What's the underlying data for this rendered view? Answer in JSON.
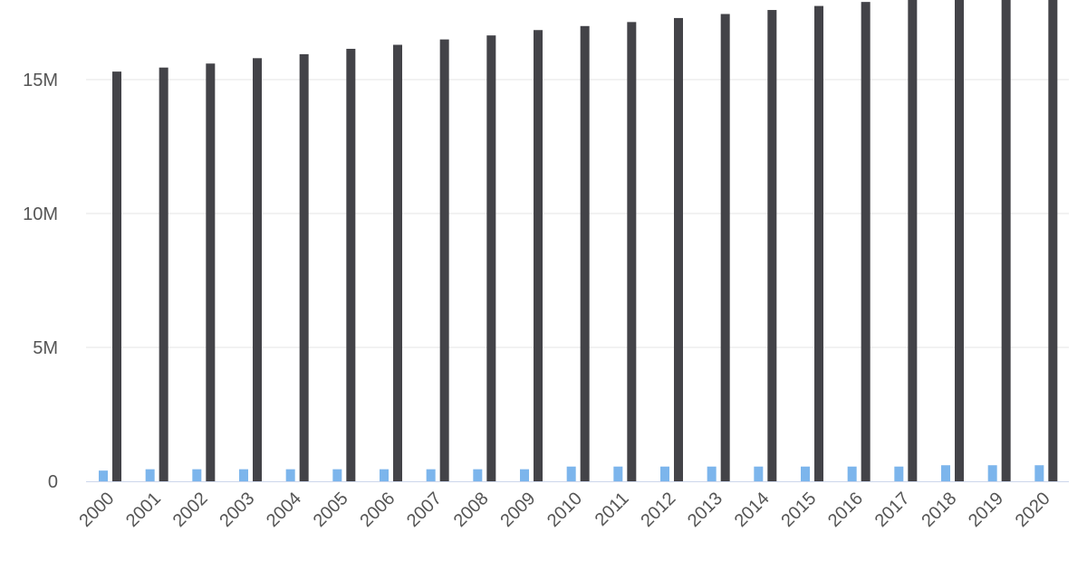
{
  "chart_data": {
    "type": "bar",
    "title": "",
    "xlabel": "",
    "ylabel": "",
    "categories": [
      "2000",
      "2001",
      "2002",
      "2003",
      "2004",
      "2005",
      "2006",
      "2007",
      "2008",
      "2009",
      "2010",
      "2011",
      "2012",
      "2013",
      "2014",
      "2015",
      "2016",
      "2017",
      "2018",
      "2019",
      "2020"
    ],
    "ylim": [
      0,
      17500000
    ],
    "yticks": [
      {
        "value": 0,
        "label": "0"
      },
      {
        "value": 5000000,
        "label": "5M"
      },
      {
        "value": 10000000,
        "label": "10M"
      },
      {
        "value": 15000000,
        "label": "15M"
      }
    ],
    "grid": true,
    "legend": "none",
    "series": [
      {
        "color": "#7cb5ec",
        "values": [
          400000,
          450000,
          450000,
          450000,
          450000,
          450000,
          450000,
          450000,
          450000,
          450000,
          550000,
          550000,
          550000,
          550000,
          550000,
          550000,
          550000,
          550000,
          600000,
          600000,
          600000
        ]
      },
      {
        "color": "#434348",
        "values": [
          15300000,
          15450000,
          15600000,
          15800000,
          15950000,
          16150000,
          16300000,
          16500000,
          16650000,
          16850000,
          17000000,
          17150000,
          17300000,
          17450000,
          17600000,
          17750000,
          17900000,
          18050000,
          18200000,
          18350000,
          18500000
        ]
      }
    ]
  }
}
